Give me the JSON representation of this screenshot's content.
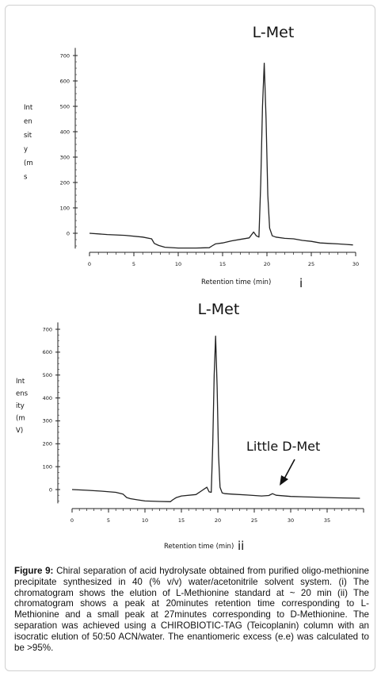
{
  "chart_data": [
    {
      "type": "line",
      "title": "L-Met",
      "panel_label": "i",
      "xlabel": "Retention time (min)",
      "ylabel_lines": [
        "Int",
        "en",
        "sit",
        "y",
        "(m",
        "s"
      ],
      "xlim": [
        0,
        30
      ],
      "ylim": [
        -60,
        720
      ],
      "xticks": [
        0,
        5,
        10,
        15,
        20,
        25,
        30
      ],
      "yticks": [
        0,
        100,
        200,
        300,
        400,
        500,
        600,
        700
      ],
      "series": [
        {
          "x": [
            0,
            2,
            4,
            6,
            7,
            7.3,
            7.8,
            8.5,
            10,
            12,
            13.5,
            13.8,
            14.2,
            15,
            16,
            17,
            18,
            18.5,
            18.8,
            19.1,
            19.3,
            19.5,
            19.7,
            19.9,
            20.1,
            20.3,
            20.6,
            21,
            22,
            23,
            24,
            25,
            26,
            27,
            28,
            29,
            29.7
          ],
          "y": [
            0,
            -5,
            -8,
            -15,
            -22,
            -40,
            -48,
            -55,
            -58,
            -58,
            -57,
            -50,
            -42,
            -38,
            -30,
            -24,
            -18,
            5,
            -10,
            -15,
            200,
            500,
            670,
            450,
            150,
            20,
            -10,
            -15,
            -20,
            -22,
            -28,
            -32,
            -38,
            -40,
            -42,
            -44,
            -46
          ]
        }
      ]
    },
    {
      "type": "line",
      "title": "L-Met",
      "panel_label": "ii",
      "xlabel": "Retention time (min)",
      "ylabel_lines": [
        "Int",
        "ens",
        "ity",
        "(m",
        "V)"
      ],
      "xlim": [
        0,
        40
      ],
      "ylim": [
        -60,
        720
      ],
      "xticks": [
        0,
        5,
        10,
        15,
        20,
        25,
        30,
        35
      ],
      "yticks": [
        0,
        100,
        200,
        300,
        400,
        500,
        600,
        700
      ],
      "annotation": "Little D-Met",
      "series": [
        {
          "x": [
            0,
            2,
            4,
            6,
            7,
            7.5,
            8,
            9,
            10,
            12,
            13.5,
            13.8,
            14.3,
            15,
            17,
            18.5,
            18.8,
            19.1,
            19.3,
            19.5,
            19.7,
            19.9,
            20.1,
            20.3,
            20.6,
            21,
            22,
            24,
            26,
            27,
            27.5,
            28,
            30,
            33,
            36,
            39.5
          ],
          "y": [
            0,
            -3,
            -7,
            -12,
            -20,
            -35,
            -40,
            -45,
            -50,
            -52,
            -53,
            -45,
            -35,
            -28,
            -22,
            10,
            -10,
            -12,
            200,
            500,
            670,
            450,
            150,
            10,
            -15,
            -18,
            -20,
            -24,
            -28,
            -26,
            -18,
            -25,
            -30,
            -33,
            -36,
            -38
          ]
        }
      ]
    }
  ],
  "caption": {
    "prefix": "Figure 9:",
    "text": "Chiral separation of acid hydrolysate obtained from purified oligo-methionine precipitate synthesized in 40 (% v/v) water/acetonitrile solvent system. (i) The chromatogram shows the elution of L-Methionine standard at ~ 20 min (ii) The chromatogram shows a peak at 20minutes retention time corresponding to L-Methionine and a small peak at 27minutes corresponding to D-Methionine. The separation was achieved using a CHIROBIOTIC-TAG (Teicoplanin) column with an isocratic elution of 50:50 ACN/water. The enantiomeric excess (e.e) was calculated to be >95%."
  }
}
